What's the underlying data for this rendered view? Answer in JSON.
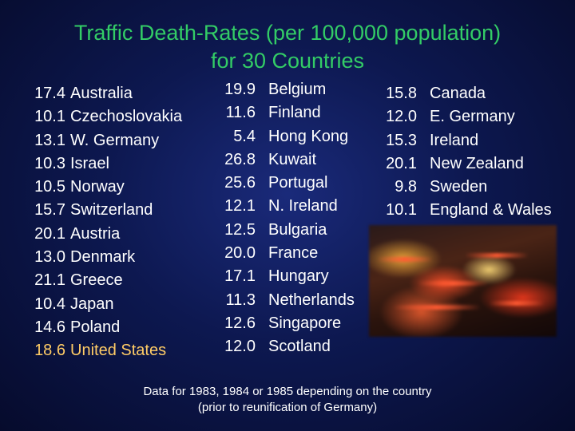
{
  "title": {
    "line1": "Traffic Death-Rates (per 100,000 population)",
    "line2": "for 30 Countries"
  },
  "columns": [
    [
      {
        "value": "17.4",
        "country": "Australia"
      },
      {
        "value": "10.1",
        "country": "Czechoslovakia"
      },
      {
        "value": "13.1",
        "country": "W. Germany"
      },
      {
        "value": "10.3",
        "country": "Israel"
      },
      {
        "value": "10.5",
        "country": "Norway"
      },
      {
        "value": "15.7",
        "country": "Switzerland"
      },
      {
        "value": "20.1",
        "country": "Austria"
      },
      {
        "value": "13.0",
        "country": "Denmark"
      },
      {
        "value": "21.1",
        "country": "Greece"
      },
      {
        "value": "10.4",
        "country": "Japan"
      },
      {
        "value": "14.6",
        "country": "Poland"
      },
      {
        "value": "18.6",
        "country": "United States"
      }
    ],
    [
      {
        "value": "19.9",
        "country": "Belgium"
      },
      {
        "value": "11.6",
        "country": "Finland"
      },
      {
        "value": "5.4",
        "country": "Hong Kong"
      },
      {
        "value": "26.8",
        "country": "Kuwait"
      },
      {
        "value": "25.6",
        "country": "Portugal"
      },
      {
        "value": "12.1",
        "country": "N. Ireland"
      },
      {
        "value": "12.5",
        "country": "Bulgaria"
      },
      {
        "value": "20.0",
        "country": "France"
      },
      {
        "value": "17.1",
        "country": "Hungary"
      },
      {
        "value": "11.3",
        "country": "Netherlands"
      },
      {
        "value": "12.6",
        "country": "Singapore"
      },
      {
        "value": "12.0",
        "country": "Scotland"
      }
    ],
    [
      {
        "value": "15.8",
        "country": "Canada"
      },
      {
        "value": "12.0",
        "country": "E. Germany"
      },
      {
        "value": "15.3",
        "country": "Ireland"
      },
      {
        "value": "20.1",
        "country": "New Zealand"
      },
      {
        "value": "9.8",
        "country": "Sweden"
      },
      {
        "value": "10.1",
        "country": "England & Wales"
      }
    ]
  ],
  "footnote": {
    "line1": "Data for 1983, 1984 or 1985 depending on the country",
    "line2": "(prior to reunification of Germany)"
  },
  "colors": {
    "title": "#33cc66",
    "text": "#ffffff",
    "highlight": "#ffcc66",
    "background": "#0d1850"
  }
}
